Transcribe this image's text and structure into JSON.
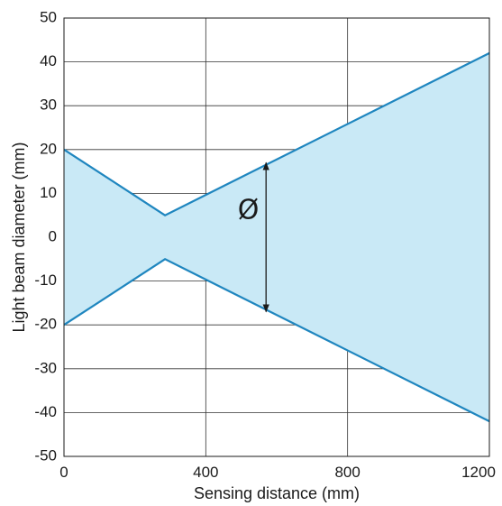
{
  "chart_data": {
    "type": "area",
    "title": "",
    "xlabel": "Sensing distance (mm)",
    "ylabel": "Light beam diameter (mm)",
    "xlim": [
      0,
      1200
    ],
    "ylim": [
      -50,
      50
    ],
    "x_ticks": [
      "0",
      "400",
      "800",
      "1200"
    ],
    "y_ticks": [
      "50",
      "40",
      "30",
      "20",
      "10",
      "0",
      "-10",
      "-20",
      "-30",
      "-40",
      "-50"
    ],
    "grid": true,
    "colors": {
      "fill": "#c9e9f6",
      "line": "#1f86bf",
      "grid": "#333333",
      "annotation": "#1a1a1a"
    },
    "series": [
      {
        "x": [
          0,
          285,
          1200
        ],
        "y": [
          20,
          5,
          42
        ]
      },
      {
        "x": [
          0,
          285,
          1200
        ],
        "y": [
          -20,
          -5,
          -42
        ]
      }
    ],
    "annotations": [
      {
        "text": "Ø",
        "arrow_x": 570,
        "arrow_y": [
          17,
          -17
        ],
        "text_x": 520,
        "text_y": 6
      }
    ]
  }
}
